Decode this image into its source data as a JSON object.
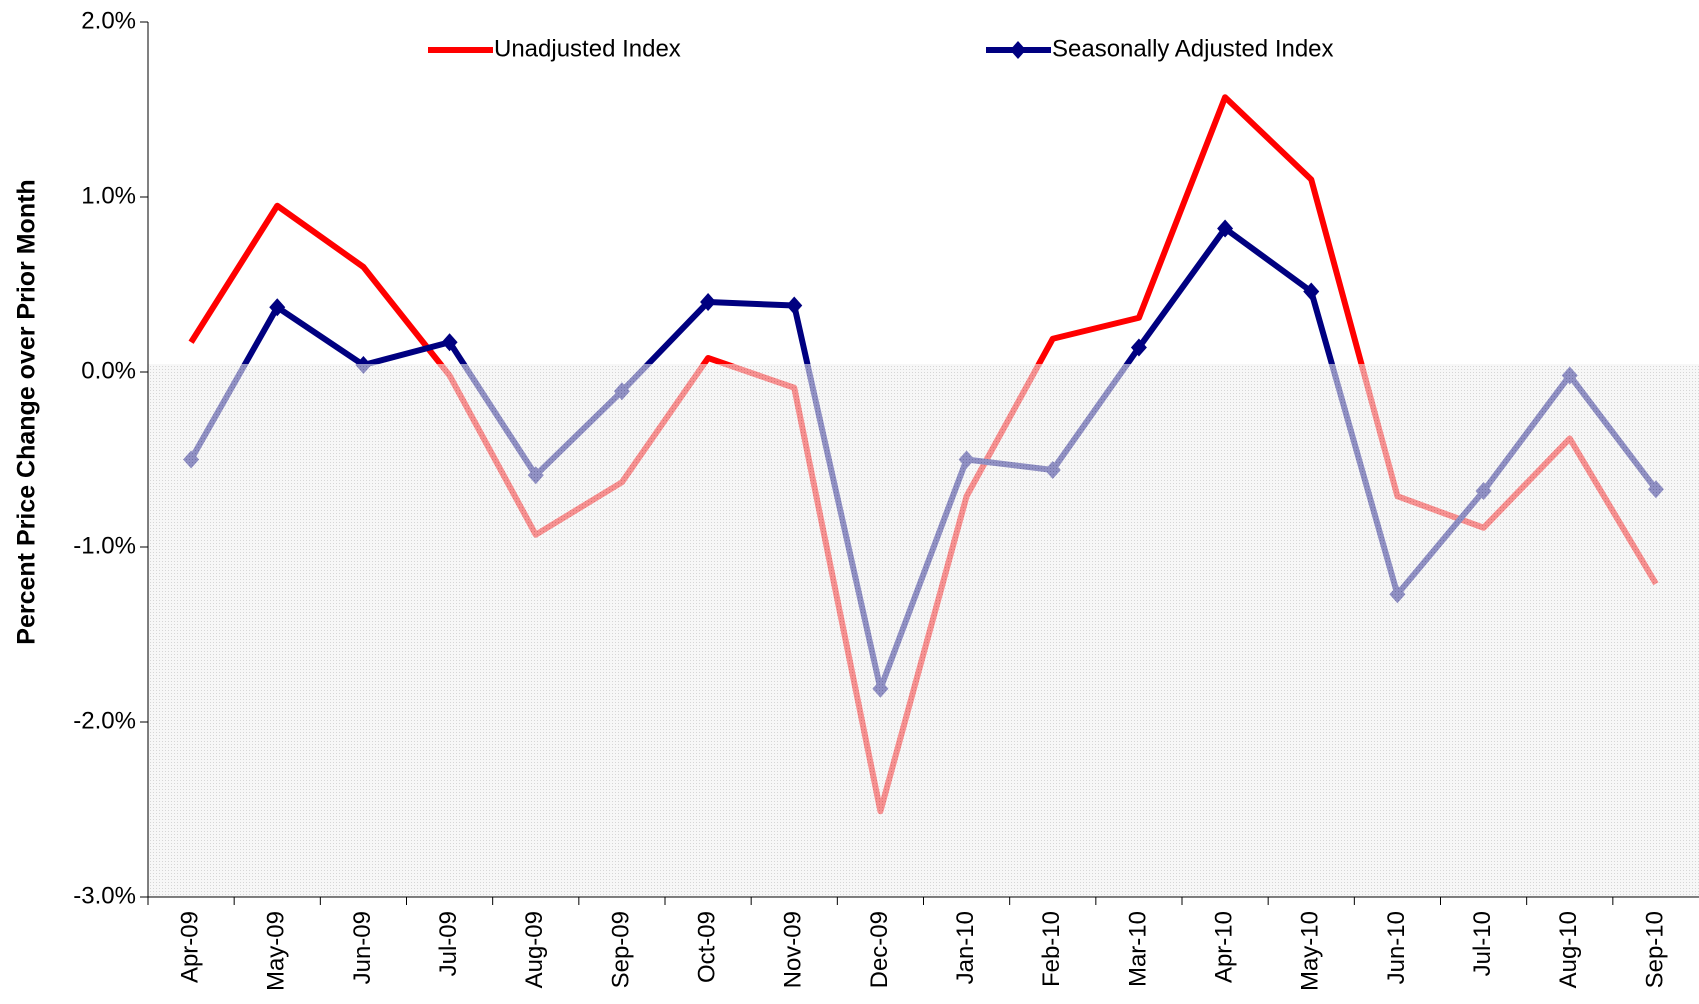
{
  "chart_data": {
    "type": "line",
    "ylabel": "Percent Price Change over Prior Month",
    "categories": [
      "Apr-09",
      "May-09",
      "Jun-09",
      "Jul-09",
      "Aug-09",
      "Sep-09",
      "Oct-09",
      "Nov-09",
      "Dec-09",
      "Jan-10",
      "Feb-10",
      "Mar-10",
      "Apr-10",
      "May-10",
      "Jun-10",
      "Jul-10",
      "Aug-10",
      "Sep-10"
    ],
    "series": [
      {
        "name": "Unadjusted Index",
        "color": "#ff0000",
        "marker": "none",
        "values": [
          0.17,
          0.95,
          0.6,
          -0.02,
          -0.93,
          -0.63,
          0.08,
          -0.09,
          -2.51,
          -0.71,
          0.19,
          0.31,
          1.57,
          1.1,
          -0.71,
          -0.89,
          -0.38,
          -1.21
        ]
      },
      {
        "name": "Seasonally Adjusted Index",
        "color": "#000080",
        "marker": "diamond",
        "values": [
          -0.5,
          0.37,
          0.04,
          0.17,
          -0.59,
          -0.11,
          0.4,
          0.38,
          -1.81,
          -0.5,
          -0.56,
          0.14,
          0.82,
          0.46,
          -1.27,
          -0.68,
          -0.02,
          -0.67
        ]
      }
    ],
    "ylim": [
      -3,
      2
    ],
    "yticks": [
      {
        "value": -3,
        "label": "-3.0%"
      },
      {
        "value": -2,
        "label": "-2.0%"
      },
      {
        "value": -1,
        "label": "-1.0%"
      },
      {
        "value": 0,
        "label": "0.0%"
      },
      {
        "value": 1,
        "label": "1.0%"
      },
      {
        "value": 2,
        "label": "2.0%"
      }
    ],
    "legend": "top"
  }
}
